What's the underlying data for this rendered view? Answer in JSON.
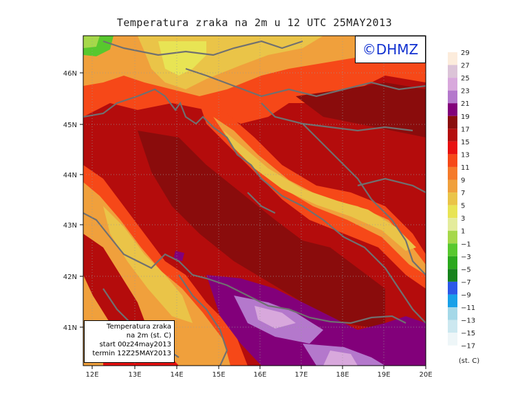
{
  "title": "Temperatura zraka na 2m u 12 UTC 25MAY2013",
  "logo_text": "©DHMZ",
  "info_box": {
    "line1": "Temperatura zraka",
    "line2": "na 2m (st. C)",
    "line3": "start 00z24may2013",
    "line4": "termin 12Z25MAY2013"
  },
  "lon_labels": [
    "12E",
    "13E",
    "14E",
    "15E",
    "16E",
    "17E",
    "18E",
    "19E",
    "20E"
  ],
  "lat_labels": [
    "46N",
    "45N",
    "44N",
    "43N",
    "42N",
    "41N"
  ],
  "colorbar": {
    "unit": "(st. C)",
    "levels": [
      "29",
      "27",
      "25",
      "23",
      "21",
      "19",
      "17",
      "15",
      "13",
      "11",
      "9",
      "7",
      "5",
      "3",
      "1",
      "−1",
      "−3",
      "−5",
      "−7",
      "−9",
      "−11",
      "−13",
      "−15",
      "−17"
    ],
    "colors": [
      "#fcecdc",
      "#dcc4d8",
      "#d8a8dc",
      "#b478cc",
      "#82007a",
      "#8a0c0c",
      "#b40c0c",
      "#e81010",
      "#f64818",
      "#f57a2a",
      "#f0a03c",
      "#eac448",
      "#e8e454",
      "#e4ec9c",
      "#a6d84a",
      "#58c82e",
      "#2aa81c",
      "#16821c",
      "#2c58e8",
      "#18a0e8",
      "#a4d8e8",
      "#cce8f0",
      "#eef6f8"
    ]
  }
}
